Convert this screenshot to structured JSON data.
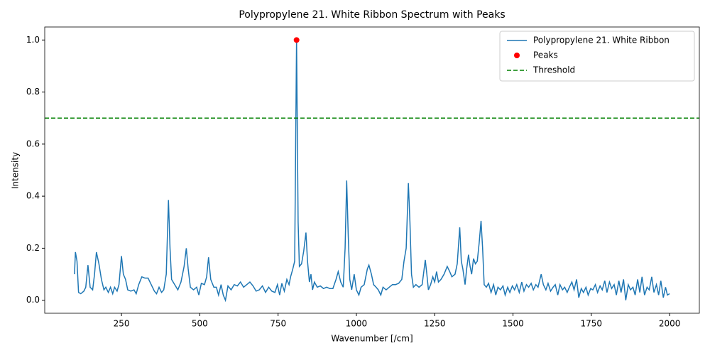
{
  "chart_data": {
    "type": "line",
    "title": "Polypropylene 21. White Ribbon Spectrum with Peaks",
    "xlabel": "Wavenumber [/cm]",
    "ylabel": "Intensity",
    "xlim": [
      5,
      2095
    ],
    "ylim": [
      -0.05,
      1.05
    ],
    "xticks": [
      250,
      500,
      750,
      1000,
      1250,
      1500,
      1750,
      2000
    ],
    "yticks": [
      {
        "value": 0,
        "label": "0.0"
      },
      {
        "value": 0.2,
        "label": "0.2"
      },
      {
        "value": 0.4,
        "label": "0.4"
      },
      {
        "value": 0.6,
        "label": "0.6"
      },
      {
        "value": 0.8,
        "label": "0.8"
      },
      {
        "value": 1,
        "label": "1.0"
      }
    ],
    "legend": "upper right",
    "series": [
      {
        "name": "Polypropylene 21. White Ribbon",
        "type": "line",
        "color": "#1f77b4",
        "x": [
          100,
          103,
          108,
          113,
          120,
          130,
          136,
          143,
          150,
          158,
          164,
          170,
          178,
          186,
          194,
          200,
          208,
          215,
          222,
          228,
          236,
          242,
          250,
          256,
          263,
          270,
          280,
          290,
          297,
          305,
          315,
          325,
          335,
          345,
          355,
          362,
          370,
          378,
          385,
          393,
          400,
          405,
          410,
          420,
          430,
          440,
          450,
          457,
          463,
          470,
          480,
          490,
          497,
          505,
          515,
          522,
          528,
          535,
          545,
          553,
          560,
          568,
          575,
          582,
          590,
          600,
          610,
          620,
          630,
          640,
          650,
          660,
          670,
          680,
          690,
          700,
          710,
          720,
          730,
          740,
          748,
          755,
          762,
          770,
          778,
          785,
          790,
          797,
          803,
          809,
          814,
          818,
          825,
          832,
          839,
          844,
          850,
          855,
          860,
          866,
          875,
          885,
          895,
          905,
          915,
          925,
          935,
          942,
          950,
          958,
          964,
          969,
          974,
          979,
          985,
          993,
          1000,
          1008,
          1015,
          1025,
          1035,
          1040,
          1048,
          1055,
          1063,
          1070,
          1078,
          1085,
          1095,
          1105,
          1115,
          1125,
          1135,
          1145,
          1152,
          1159,
          1166,
          1171,
          1176,
          1182,
          1190,
          1200,
          1210,
          1220,
          1225,
          1230,
          1237,
          1244,
          1250,
          1256,
          1262,
          1270,
          1280,
          1290,
          1298,
          1305,
          1315,
          1322,
          1330,
          1335,
          1340,
          1347,
          1352,
          1358,
          1363,
          1368,
          1374,
          1380,
          1386,
          1392,
          1398,
          1403,
          1408,
          1415,
          1422,
          1430,
          1438,
          1445,
          1452,
          1460,
          1468,
          1475,
          1483,
          1490,
          1498,
          1505,
          1512,
          1520,
          1528,
          1535,
          1543,
          1550,
          1558,
          1565,
          1573,
          1580,
          1590,
          1597,
          1605,
          1612,
          1620,
          1628,
          1635,
          1643,
          1650,
          1658,
          1665,
          1673,
          1680,
          1688,
          1695,
          1703,
          1710,
          1718,
          1725,
          1733,
          1740,
          1748,
          1755,
          1763,
          1770,
          1778,
          1785,
          1793,
          1800,
          1808,
          1815,
          1823,
          1830,
          1838,
          1845,
          1853,
          1860,
          1868,
          1875,
          1883,
          1890,
          1898,
          1905,
          1912,
          1920,
          1928,
          1935,
          1943,
          1950,
          1958,
          1965,
          1972,
          1980,
          1987,
          1993,
          2000
        ],
        "values": [
          0.1,
          0.185,
          0.15,
          0.03,
          0.025,
          0.035,
          0.05,
          0.135,
          0.05,
          0.04,
          0.1,
          0.185,
          0.14,
          0.08,
          0.04,
          0.05,
          0.03,
          0.05,
          0.025,
          0.05,
          0.035,
          0.06,
          0.17,
          0.1,
          0.08,
          0.04,
          0.035,
          0.04,
          0.025,
          0.06,
          0.09,
          0.085,
          0.085,
          0.06,
          0.035,
          0.025,
          0.05,
          0.03,
          0.04,
          0.1,
          0.385,
          0.2,
          0.08,
          0.06,
          0.04,
          0.07,
          0.13,
          0.2,
          0.12,
          0.05,
          0.04,
          0.05,
          0.02,
          0.065,
          0.06,
          0.09,
          0.165,
          0.08,
          0.05,
          0.05,
          0.02,
          0.06,
          0.02,
          0.0,
          0.055,
          0.04,
          0.06,
          0.055,
          0.07,
          0.05,
          0.06,
          0.07,
          0.055,
          0.035,
          0.04,
          0.055,
          0.03,
          0.05,
          0.035,
          0.03,
          0.06,
          0.02,
          0.065,
          0.035,
          0.08,
          0.06,
          0.09,
          0.12,
          0.15,
          1.0,
          0.3,
          0.13,
          0.14,
          0.19,
          0.26,
          0.15,
          0.07,
          0.1,
          0.04,
          0.07,
          0.05,
          0.055,
          0.045,
          0.05,
          0.045,
          0.045,
          0.08,
          0.11,
          0.07,
          0.05,
          0.2,
          0.46,
          0.25,
          0.08,
          0.04,
          0.1,
          0.04,
          0.02,
          0.05,
          0.06,
          0.12,
          0.135,
          0.1,
          0.06,
          0.05,
          0.04,
          0.02,
          0.05,
          0.04,
          0.05,
          0.06,
          0.06,
          0.065,
          0.08,
          0.15,
          0.2,
          0.45,
          0.3,
          0.1,
          0.05,
          0.06,
          0.05,
          0.06,
          0.155,
          0.1,
          0.04,
          0.06,
          0.09,
          0.07,
          0.11,
          0.07,
          0.08,
          0.1,
          0.13,
          0.11,
          0.09,
          0.1,
          0.14,
          0.28,
          0.15,
          0.12,
          0.06,
          0.12,
          0.175,
          0.13,
          0.1,
          0.16,
          0.14,
          0.15,
          0.22,
          0.305,
          0.2,
          0.06,
          0.05,
          0.065,
          0.03,
          0.06,
          0.02,
          0.05,
          0.04,
          0.055,
          0.02,
          0.05,
          0.03,
          0.055,
          0.04,
          0.06,
          0.03,
          0.07,
          0.035,
          0.06,
          0.05,
          0.065,
          0.04,
          0.06,
          0.05,
          0.1,
          0.06,
          0.04,
          0.065,
          0.035,
          0.05,
          0.06,
          0.02,
          0.06,
          0.04,
          0.05,
          0.03,
          0.05,
          0.07,
          0.04,
          0.08,
          0.01,
          0.045,
          0.03,
          0.05,
          0.02,
          0.045,
          0.04,
          0.06,
          0.03,
          0.055,
          0.04,
          0.075,
          0.03,
          0.07,
          0.045,
          0.06,
          0.02,
          0.075,
          0.03,
          0.08,
          0.0,
          0.06,
          0.04,
          0.05,
          0.02,
          0.08,
          0.03,
          0.09,
          0.02,
          0.05,
          0.04,
          0.09,
          0.03,
          0.06,
          0.02,
          0.075,
          0.01,
          0.05,
          0.02,
          0.025
        ]
      },
      {
        "name": "Peaks",
        "type": "scatter",
        "color": "#ff0000",
        "x": [
          809
        ],
        "values": [
          1.0
        ]
      },
      {
        "name": "Threshold",
        "type": "hline",
        "color": "#008000",
        "values": [
          0.7
        ]
      }
    ]
  }
}
